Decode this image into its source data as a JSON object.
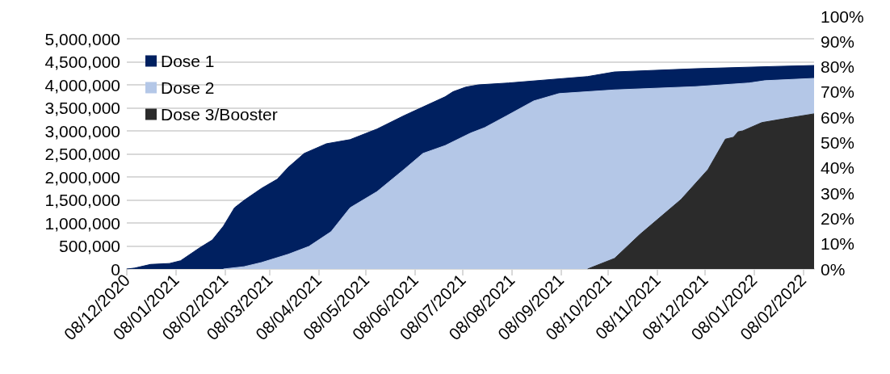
{
  "chart_data": {
    "type": "area",
    "legend": "top left",
    "grid": "y",
    "xlim": [
      "2020-12-08",
      "2022-02-15"
    ],
    "xticks": [
      {
        "value": "2020-12-08",
        "label": "08/12/2020"
      },
      {
        "value": "2021-01-08",
        "label": "08/01/2021"
      },
      {
        "value": "2021-02-08",
        "label": "08/02/2021"
      },
      {
        "value": "2021-03-08",
        "label": "08/03/2021"
      },
      {
        "value": "2021-04-08",
        "label": "08/04/2021"
      },
      {
        "value": "2021-05-08",
        "label": "08/05/2021"
      },
      {
        "value": "2021-06-08",
        "label": "08/06/2021"
      },
      {
        "value": "2021-07-08",
        "label": "08/07/2021"
      },
      {
        "value": "2021-08-08",
        "label": "08/08/2021"
      },
      {
        "value": "2021-09-08",
        "label": "08/09/2021"
      },
      {
        "value": "2021-10-08",
        "label": "08/10/2021"
      },
      {
        "value": "2021-11-08",
        "label": "08/11/2021"
      },
      {
        "value": "2021-12-08",
        "label": "08/12/2021"
      },
      {
        "value": "2022-01-08",
        "label": "08/01/2022"
      },
      {
        "value": "2022-02-08",
        "label": "08/02/2022"
      }
    ],
    "ylim": [
      0,
      5000000
    ],
    "yticks": [
      {
        "value": 0,
        "label": "0"
      },
      {
        "value": 500000,
        "label": "500,000"
      },
      {
        "value": 1000000,
        "label": "1,000,000"
      },
      {
        "value": 1500000,
        "label": "1,500,000"
      },
      {
        "value": 2000000,
        "label": "2,000,000"
      },
      {
        "value": 2500000,
        "label": "2,500,000"
      },
      {
        "value": 3000000,
        "label": "3,000,000"
      },
      {
        "value": 3500000,
        "label": "3,500,000"
      },
      {
        "value": 4000000,
        "label": "4,000,000"
      },
      {
        "value": 4500000,
        "label": "4,500,000"
      },
      {
        "value": 5000000,
        "label": "5,000,000"
      }
    ],
    "y2lim": [
      0,
      100
    ],
    "y2ticks": [
      {
        "value": 0,
        "label": "0%"
      },
      {
        "value": 10,
        "label": "10%"
      },
      {
        "value": 20,
        "label": "20%"
      },
      {
        "value": 30,
        "label": "30%"
      },
      {
        "value": 40,
        "label": "40%"
      },
      {
        "value": 50,
        "label": "50%"
      },
      {
        "value": 60,
        "label": "60%"
      },
      {
        "value": 70,
        "label": "70%"
      },
      {
        "value": 80,
        "label": "80%"
      },
      {
        "value": 90,
        "label": "90%"
      },
      {
        "value": 100,
        "label": "100%"
      }
    ],
    "series": [
      {
        "name": "Dose 1",
        "color": "#002060",
        "x": [
          "2020-12-08",
          "2020-12-13",
          "2020-12-23",
          "2021-01-04",
          "2021-01-11",
          "2021-01-23",
          "2021-01-31",
          "2021-02-07",
          "2021-02-14",
          "2021-02-20",
          "2021-03-03",
          "2021-03-13",
          "2021-03-20",
          "2021-03-30",
          "2021-04-13",
          "2021-04-28",
          "2021-05-15",
          "2021-06-01",
          "2021-06-27",
          "2021-07-02",
          "2021-07-10",
          "2021-07-18",
          "2021-08-06",
          "2021-09-25",
          "2021-10-12",
          "2021-12-02",
          "2022-01-22",
          "2022-02-15"
        ],
        "values": [
          0,
          20000,
          100000,
          120000,
          180000,
          460000,
          630000,
          930000,
          1330000,
          1490000,
          1750000,
          1950000,
          2210000,
          2510000,
          2720000,
          2810000,
          3040000,
          3330000,
          3740000,
          3850000,
          3950000,
          4000000,
          4040000,
          4180000,
          4280000,
          4350000,
          4400000,
          4420000
        ]
      },
      {
        "name": "Dose 2",
        "color": "#b4c7e7",
        "x": [
          "2021-02-07",
          "2021-02-20",
          "2021-03-03",
          "2021-03-20",
          "2021-04-02",
          "2021-04-16",
          "2021-04-28",
          "2021-05-15",
          "2021-06-01",
          "2021-06-13",
          "2021-06-27",
          "2021-07-13",
          "2021-07-22",
          "2021-08-05",
          "2021-08-22",
          "2021-09-07",
          "2021-10-12",
          "2021-12-02",
          "2022-01-05",
          "2022-01-15",
          "2022-02-15"
        ],
        "values": [
          0,
          50000,
          140000,
          320000,
          490000,
          810000,
          1330000,
          1680000,
          2160000,
          2510000,
          2680000,
          2950000,
          3070000,
          3330000,
          3650000,
          3810000,
          3890000,
          3960000,
          4040000,
          4090000,
          4140000
        ]
      },
      {
        "name": "Dose 3/Booster",
        "color": "#2b2b2b",
        "x": [
          "2021-09-25",
          "2021-10-12",
          "2021-10-28",
          "2021-11-23",
          "2021-12-10",
          "2021-12-21",
          "2021-12-26",
          "2021-12-29",
          "2022-01-01",
          "2022-01-13",
          "2022-01-30",
          "2022-02-15"
        ],
        "values": [
          0,
          230000,
          750000,
          1510000,
          2160000,
          2820000,
          2860000,
          2980000,
          3000000,
          3180000,
          3280000,
          3370000
        ]
      }
    ]
  }
}
